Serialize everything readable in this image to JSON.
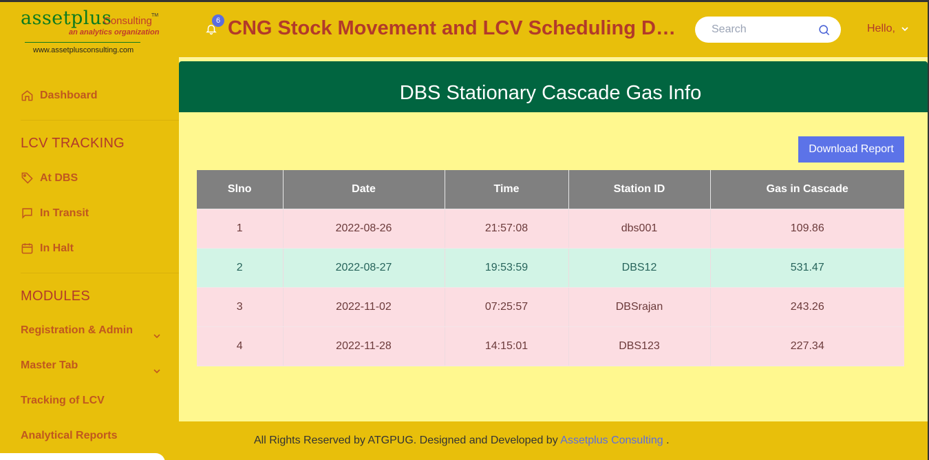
{
  "brand": {
    "name": "assetplus",
    "sub": "Consulting",
    "tm": "TM",
    "tagline": "an analytics organization",
    "url": "www.assetplusconsulting.com"
  },
  "sidebar": {
    "dashboard": "Dashboard",
    "lcv_section": "LCV TRACKING",
    "lcv_items": [
      "At DBS",
      "In Transit",
      "In Halt"
    ],
    "modules_section": "MODULES",
    "module_items": [
      "Registration & Admin",
      "Master Tab",
      "Tracking of LCV",
      "Analytical Reports"
    ]
  },
  "header": {
    "notification_count": "6",
    "title": "CNG Stock Movement and LCV Scheduling Dashboard",
    "search_placeholder": "Search",
    "greeting": "Hello,"
  },
  "main": {
    "title": "DBS Stationary Cascade Gas Info",
    "download_label": "Download Report",
    "columns": [
      "Slno",
      "Date",
      "Time",
      "Station ID",
      "Gas in Cascade"
    ],
    "rows": [
      [
        "1",
        "2022-08-26",
        "21:57:08",
        "dbs001",
        "109.86"
      ],
      [
        "2",
        "2022-08-27",
        "19:53:59",
        "DBS12",
        "531.47"
      ],
      [
        "3",
        "2022-11-02",
        "07:25:57",
        "DBSrajan",
        "243.26"
      ],
      [
        "4",
        "2022-11-28",
        "14:15:01",
        "DBS123",
        "227.34"
      ]
    ]
  },
  "footer": {
    "text": "All Rights Reserved by ATGPUG. Designed and Developed by",
    "link": "Assetplus Consulting",
    "end": "."
  },
  "colors": {
    "sidebar_bg": "#e8bf0b",
    "banner_bg": "#016540",
    "content_bg": "#fff88f",
    "button_bg": "#5c73e8",
    "table_header": "#808080",
    "row_pink": "#fcdde2",
    "row_mint": "#d2f4e6"
  }
}
